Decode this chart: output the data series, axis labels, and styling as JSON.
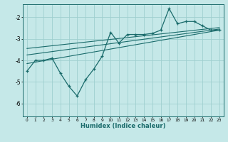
{
  "xlabel": "Humidex (Indice chaleur)",
  "bg_color": "#c5e8e8",
  "line_color": "#1a6b6b",
  "grid_color": "#9fcfcf",
  "xlim": [
    -0.5,
    23.5
  ],
  "ylim": [
    -6.6,
    -1.4
  ],
  "xticks": [
    0,
    1,
    2,
    3,
    4,
    5,
    6,
    7,
    8,
    9,
    10,
    11,
    12,
    13,
    14,
    15,
    16,
    17,
    18,
    19,
    20,
    21,
    22,
    23
  ],
  "yticks": [
    -6,
    -5,
    -4,
    -3,
    -2
  ],
  "main_x": [
    0,
    1,
    2,
    3,
    4,
    5,
    6,
    7,
    8,
    9,
    10,
    11,
    12,
    13,
    14,
    15,
    16,
    17,
    18,
    19,
    20,
    21,
    22,
    23
  ],
  "main_y": [
    -4.5,
    -4.0,
    -4.0,
    -3.9,
    -4.6,
    -5.2,
    -5.65,
    -4.9,
    -4.4,
    -3.8,
    -2.7,
    -3.2,
    -2.8,
    -2.8,
    -2.8,
    -2.75,
    -2.6,
    -1.6,
    -2.3,
    -2.2,
    -2.2,
    -2.4,
    -2.6,
    -2.6
  ],
  "line2_x": [
    0,
    23
  ],
  "line2_y": [
    -4.15,
    -2.6
  ],
  "line3_x": [
    0,
    23
  ],
  "line3_y": [
    -3.75,
    -2.55
  ],
  "line4_x": [
    0,
    23
  ],
  "line4_y": [
    -3.45,
    -2.48
  ]
}
